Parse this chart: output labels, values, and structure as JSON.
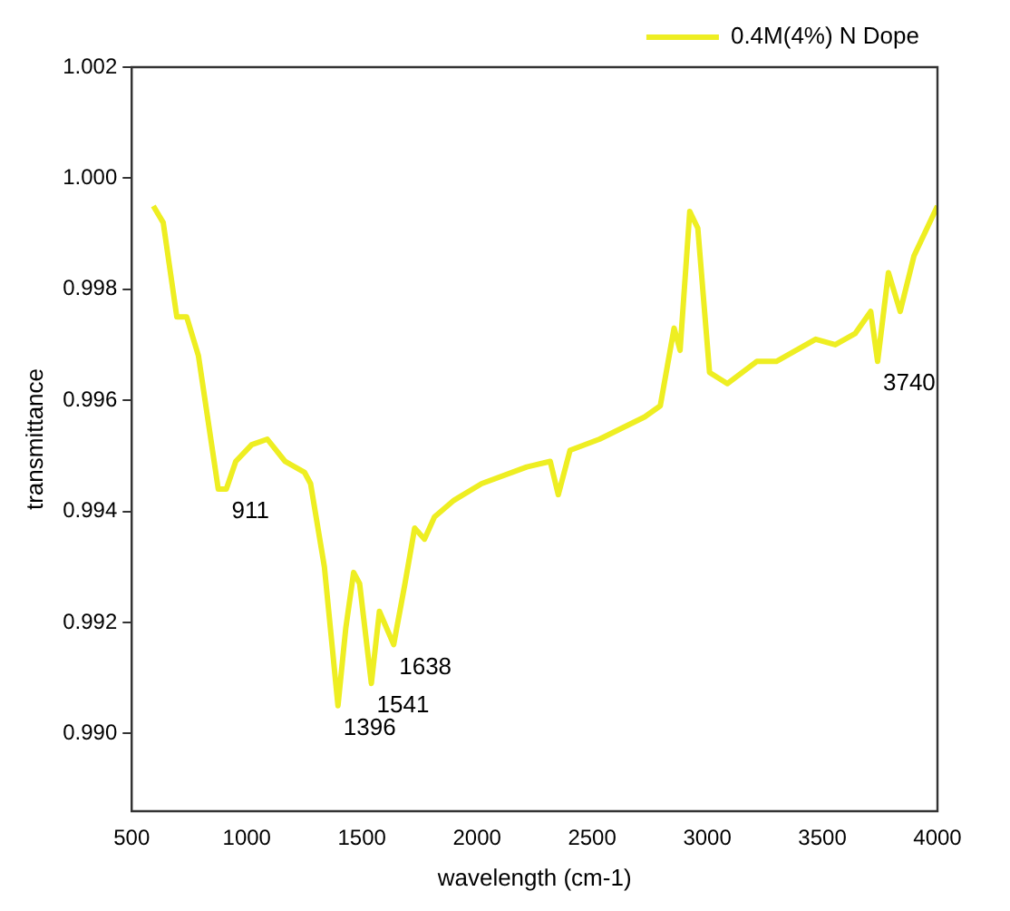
{
  "chart_data": {
    "type": "line",
    "xlabel": "wavelength (cm-1)",
    "ylabel": "transmittance",
    "xlim": [
      500,
      4000
    ],
    "xticks": [
      500,
      1000,
      1500,
      2000,
      2500,
      3000,
      3500,
      4000
    ],
    "ylim": [
      0.9886,
      1.002
    ],
    "yticks": [
      {
        "value": 0.99,
        "label": "0.990"
      },
      {
        "value": 0.992,
        "label": "0.992"
      },
      {
        "value": 0.994,
        "label": "0.994"
      },
      {
        "value": 0.996,
        "label": "0.996"
      },
      {
        "value": 0.998,
        "label": "0.998"
      },
      {
        "value": 1.0,
        "label": "1.000"
      },
      {
        "value": 1.002,
        "label": "1.002"
      }
    ],
    "grid": false,
    "legend": "top right",
    "marker": "none",
    "line_style": "solid",
    "series": [
      {
        "name": "0.4M(4%) N Dope",
        "color": "#eeee22",
        "x": [
          594,
          637,
          696,
          739,
          790,
          876,
          911,
          952,
          1021,
          1089,
          1166,
          1251,
          1277,
          1337,
          1396,
          1430,
          1464,
          1490,
          1541,
          1576,
          1638,
          1687,
          1729,
          1772,
          1815,
          1900,
          2020,
          2216,
          2318,
          2353,
          2404,
          2532,
          2728,
          2796,
          2856,
          2882,
          2924,
          2959,
          3010,
          3087,
          3215,
          3300,
          3471,
          3556,
          3642,
          3710,
          3740,
          3787,
          3838,
          3898,
          4000
        ],
        "values": [
          0.9995,
          0.9992,
          0.9975,
          0.9975,
          0.9968,
          0.9944,
          0.9944,
          0.9949,
          0.9952,
          0.9953,
          0.9949,
          0.9947,
          0.9945,
          0.993,
          0.9905,
          0.9919,
          0.9929,
          0.9927,
          0.9909,
          0.9922,
          0.9916,
          0.9927,
          0.9937,
          0.9935,
          0.9939,
          0.9942,
          0.9945,
          0.9948,
          0.9949,
          0.9943,
          0.9951,
          0.9953,
          0.9957,
          0.9959,
          0.9973,
          0.9969,
          0.9994,
          0.9991,
          0.9965,
          0.9963,
          0.9967,
          0.9967,
          0.9971,
          0.997,
          0.9972,
          0.9976,
          0.9967,
          0.9983,
          0.9976,
          0.9986,
          0.9995
        ]
      }
    ],
    "annotations": [
      {
        "text": "911",
        "x": 911,
        "y": 0.9944
      },
      {
        "text": "1396",
        "x": 1396,
        "y": 0.9905
      },
      {
        "text": "1541",
        "x": 1541,
        "y": 0.9909
      },
      {
        "text": "1638",
        "x": 1638,
        "y": 0.9916
      },
      {
        "text": "3740",
        "x": 3740,
        "y": 0.9967
      }
    ]
  }
}
